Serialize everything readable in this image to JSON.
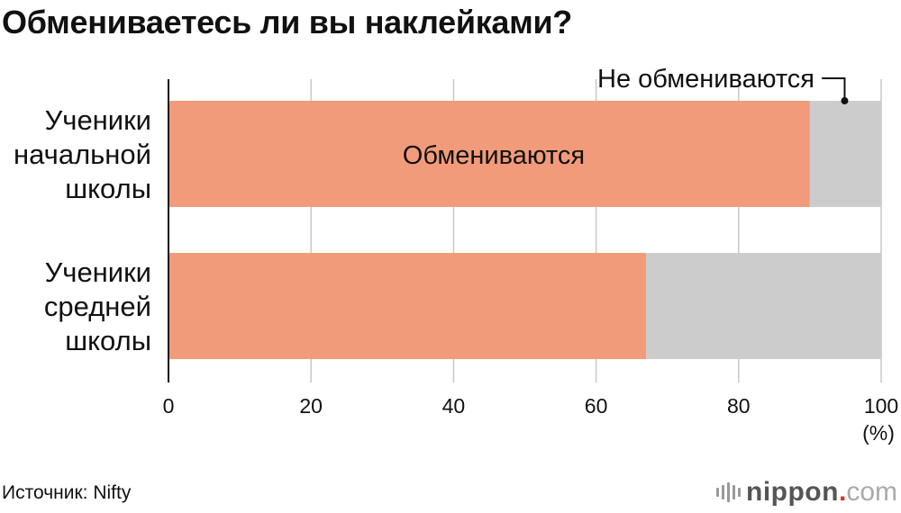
{
  "title": "Обмениваетесь ли вы наклейками?",
  "source": "Источник: Nifty",
  "brand": {
    "name": "nippon",
    "dot": ".",
    "domain": "com",
    "logo_icon": "nippon-com-logo-mark"
  },
  "colors": {
    "exchange": "#f29b7b",
    "no_exchange": "#cccccc",
    "grid": "#c8c8c8",
    "axis": "#111111",
    "leader": "#111111"
  },
  "chart_data": {
    "type": "bar",
    "orientation": "horizontal",
    "stacked": true,
    "title": "Обмениваетесь ли вы наклейками?",
    "categories": [
      [
        "Ученики",
        "начальной",
        "школы"
      ],
      [
        "Ученики",
        "средней",
        "школы"
      ]
    ],
    "series": [
      {
        "name": "Обмениваются",
        "values": [
          90,
          67
        ]
      },
      {
        "name": "Не обмениваются",
        "values": [
          10,
          33
        ]
      }
    ],
    "xlim": [
      0,
      100
    ],
    "xticks": [
      "0",
      "20",
      "40",
      "60",
      "80",
      "100"
    ],
    "xunit": "(%)",
    "grid": true,
    "legend": "inline labels"
  }
}
